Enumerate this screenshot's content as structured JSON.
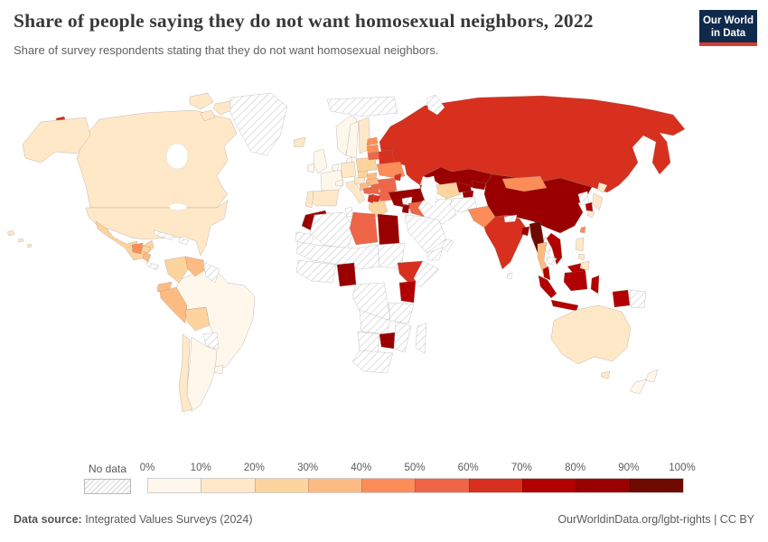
{
  "header": {
    "title": "Share of people saying they do not want homosexual neighbors, 2022",
    "subtitle": "Share of survey respondents stating that they do not want homosexual neighbors.",
    "logo": {
      "line1": "Our World",
      "line2": "in Data",
      "bg_color": "#102a4c",
      "bar_color": "#dc3a2e"
    }
  },
  "legend": {
    "no_data_label": "No data",
    "ticks": [
      "0%",
      "10%",
      "20%",
      "30%",
      "40%",
      "50%",
      "60%",
      "70%",
      "80%",
      "90%",
      "100%"
    ],
    "bands": [
      {
        "range": "0-10%",
        "color": "#fff7ec"
      },
      {
        "range": "10-20%",
        "color": "#fee8c8"
      },
      {
        "range": "20-30%",
        "color": "#fdd49e"
      },
      {
        "range": "30-40%",
        "color": "#fdbb84"
      },
      {
        "range": "40-50%",
        "color": "#fc8d59"
      },
      {
        "range": "50-60%",
        "color": "#ef6548"
      },
      {
        "range": "60-70%",
        "color": "#d7301f"
      },
      {
        "range": "70-80%",
        "color": "#b30000"
      },
      {
        "range": "80-90%",
        "color": "#9a0000"
      },
      {
        "range": "90-100%",
        "color": "#6f0a00"
      }
    ]
  },
  "footer": {
    "source_label": "Data source:",
    "source_text": " Integrated Values Surveys (2024)",
    "right_text": "OurWorldinData.org/lgbt-rights | CC BY"
  },
  "chart_data": {
    "type": "heatmap",
    "subtype": "world_choropleth",
    "title": "Share of people saying they do not want homosexual neighbors, 2022",
    "unit": "%",
    "legend_position": "bottom",
    "no_data_label": "No data",
    "regions": {
      "united-states": {
        "label": "United States",
        "value": "10-20%"
      },
      "canada": {
        "label": "Canada",
        "value": "10-20%"
      },
      "greenland": {
        "label": "Greenland",
        "value": "No data"
      },
      "mexico": {
        "label": "Mexico",
        "value": "20-30%"
      },
      "guatemala": {
        "label": "Guatemala",
        "value": "40-50%"
      },
      "honduras": {
        "label": "Honduras",
        "value": "20-30%"
      },
      "nicaragua": {
        "label": "Nicaragua",
        "value": "30-40%"
      },
      "costa-rica-panama": {
        "label": "Costa Rica & Panama",
        "value": "No data"
      },
      "cuba": {
        "label": "Cuba",
        "value": "No data"
      },
      "hispaniola": {
        "label": "Hispaniola",
        "value": "No data"
      },
      "colombia": {
        "label": "Colombia",
        "value": "20-30%"
      },
      "venezuela": {
        "label": "Venezuela",
        "value": "30-40%"
      },
      "guyanas": {
        "label": "Guyanas",
        "value": "No data"
      },
      "ecuador": {
        "label": "Ecuador",
        "value": "30-40%"
      },
      "peru": {
        "label": "Peru",
        "value": "30-40%"
      },
      "bolivia": {
        "label": "Bolivia",
        "value": "20-30%"
      },
      "brazil": {
        "label": "Brazil",
        "value": "0-10%"
      },
      "paraguay": {
        "label": "Paraguay",
        "value": "No data"
      },
      "uruguay": {
        "label": "Uruguay",
        "value": "0-10%"
      },
      "argentina": {
        "label": "Argentina",
        "value": "0-10%"
      },
      "chile": {
        "label": "Chile",
        "value": "10-20%"
      },
      "iceland": {
        "label": "Iceland",
        "value": "10-20%"
      },
      "united-kingdom": {
        "label": "United Kingdom",
        "value": "0-10%"
      },
      "ireland": {
        "label": "Ireland",
        "value": "0-10%"
      },
      "norway": {
        "label": "Norway",
        "value": "0-10%"
      },
      "sweden": {
        "label": "Sweden",
        "value": "0-10%"
      },
      "finland": {
        "label": "Finland",
        "value": "10-20%"
      },
      "denmark": {
        "label": "Denmark",
        "value": "0-10%"
      },
      "benelux": {
        "label": "Netherlands & Belgium",
        "value": "0-10%"
      },
      "germany": {
        "label": "Germany",
        "value": "10-20%"
      },
      "france": {
        "label": "France",
        "value": "0-10%"
      },
      "switzerland": {
        "label": "Switzerland",
        "value": "0-10%"
      },
      "spain": {
        "label": "Spain",
        "value": "10-20%"
      },
      "portugal": {
        "label": "Portugal",
        "value": "10-20%"
      },
      "italy": {
        "label": "Italy",
        "value": "10-20%"
      },
      "austria": {
        "label": "Austria",
        "value": "10-20%"
      },
      "czechia": {
        "label": "Czechia",
        "value": "20-30%"
      },
      "poland": {
        "label": "Poland",
        "value": "20-30%"
      },
      "estonia": {
        "label": "Estonia",
        "value": "40-50%"
      },
      "latvia": {
        "label": "Latvia",
        "value": "40-50%"
      },
      "lithuania": {
        "label": "Lithuania",
        "value": "50-60%"
      },
      "belarus": {
        "label": "Belarus",
        "value": "60-70%"
      },
      "ukraine": {
        "label": "Ukraine",
        "value": "40-50%"
      },
      "moldova": {
        "label": "Moldova",
        "value": "60-70%"
      },
      "slovakia": {
        "label": "Slovakia",
        "value": "30-40%"
      },
      "hungary": {
        "label": "Hungary",
        "value": "30-40%"
      },
      "romania": {
        "label": "Romania",
        "value": "50-60%"
      },
      "croatia": {
        "label": "Croatia",
        "value": "30-40%"
      },
      "bosnia": {
        "label": "Bosnia & Herzegovina",
        "value": "50-60%"
      },
      "serbia": {
        "label": "Serbia",
        "value": "50-60%"
      },
      "bulgaria": {
        "label": "Bulgaria",
        "value": "50-60%"
      },
      "albania": {
        "label": "Albania",
        "value": "60-70%"
      },
      "north-macedonia": {
        "label": "North Macedonia",
        "value": "60-70%"
      },
      "greece": {
        "label": "Greece",
        "value": "20-30%"
      },
      "svalbard": {
        "label": "Svalbard",
        "value": "No data"
      },
      "arctic-islands": {
        "label": "Arctic islands",
        "value": "No data"
      },
      "russia": {
        "label": "Russia",
        "value": "60-70%"
      },
      "turkey": {
        "label": "Turkey",
        "value": "80-90%"
      },
      "georgia": {
        "label": "Georgia",
        "value": "80-90%"
      },
      "armenia-azerbaijan": {
        "label": "Armenia & Azerbaijan",
        "value": "80-90%"
      },
      "kazakhstan": {
        "label": "Kazakhstan",
        "value": "80-90%"
      },
      "turkmenistan": {
        "label": "Turkmenistan",
        "value": "20-30%"
      },
      "uzbekistan": {
        "label": "Uzbekistan",
        "value": "80-90%"
      },
      "kyrgyzstan": {
        "label": "Kyrgyzstan",
        "value": "80-90%"
      },
      "tajikistan": {
        "label": "Tajikistan",
        "value": "80-90%"
      },
      "afghanistan": {
        "label": "Afghanistan",
        "value": "No data"
      },
      "iran": {
        "label": "Iran",
        "value": "No data"
      },
      "iraq": {
        "label": "Iraq",
        "value": "50-60%"
      },
      "syria": {
        "label": "Syria",
        "value": "No data"
      },
      "jordan": {
        "label": "Jordan",
        "value": "80-90%"
      },
      "saudi-arabia": {
        "label": "Saudi Arabia",
        "value": "No data"
      },
      "yemen": {
        "label": "Yemen",
        "value": "No data"
      },
      "oman": {
        "label": "Oman",
        "value": "No data"
      },
      "morocco": {
        "label": "Morocco",
        "value": "80-90%"
      },
      "western-sahara": {
        "label": "Western Sahara",
        "value": "No data"
      },
      "algeria": {
        "label": "Algeria",
        "value": "No data"
      },
      "tunisia": {
        "label": "Tunisia",
        "value": "No data"
      },
      "libya": {
        "label": "Libya",
        "value": "50-60%"
      },
      "egypt": {
        "label": "Egypt",
        "value": "80-90%"
      },
      "sudan": {
        "label": "Sudan",
        "value": "No data"
      },
      "sahel": {
        "label": "Sahel countries",
        "value": "No data"
      },
      "west-africa": {
        "label": "West Africa",
        "value": "No data"
      },
      "nigeria": {
        "label": "Nigeria",
        "value": "80-90%"
      },
      "central-africa": {
        "label": "Central Africa",
        "value": "No data"
      },
      "ethiopia": {
        "label": "Ethiopia",
        "value": "60-70%"
      },
      "somalia": {
        "label": "Somalia",
        "value": "No data"
      },
      "kenya": {
        "label": "Kenya",
        "value": "70-80%"
      },
      "tanzania": {
        "label": "Tanzania",
        "value": "No data"
      },
      "zambia-angola": {
        "label": "Angola & Zambia",
        "value": "No data"
      },
      "zimbabwe": {
        "label": "Zimbabwe",
        "value": "80-90%"
      },
      "mozambique": {
        "label": "Mozambique",
        "value": "No data"
      },
      "madagascar": {
        "label": "Madagascar",
        "value": "No data"
      },
      "namibia-botswana": {
        "label": "Namibia & Botswana",
        "value": "No data"
      },
      "south-africa": {
        "label": "South Africa",
        "value": "No data"
      },
      "pakistan": {
        "label": "Pakistan",
        "value": "40-50%"
      },
      "india": {
        "label": "India",
        "value": "60-70%"
      },
      "nepal": {
        "label": "Nepal",
        "value": "No data"
      },
      "sri-lanka": {
        "label": "Sri Lanka",
        "value": "No data"
      },
      "bangladesh": {
        "label": "Bangladesh",
        "value": "80-90%"
      },
      "china": {
        "label": "China",
        "value": "80-90%"
      },
      "mongolia": {
        "label": "Mongolia",
        "value": "40-50%"
      },
      "myanmar": {
        "label": "Myanmar",
        "value": "90-100%"
      },
      "thailand": {
        "label": "Thailand",
        "value": "30-40%"
      },
      "laos": {
        "label": "Laos",
        "value": "No data"
      },
      "cambodia": {
        "label": "Cambodia",
        "value": "No data"
      },
      "vietnam": {
        "label": "Vietnam",
        "value": "70-80%"
      },
      "malaysia": {
        "label": "Malaysia",
        "value": "70-80%"
      },
      "indonesia": {
        "label": "Indonesia",
        "value": "70-80%"
      },
      "papua-new-guinea": {
        "label": "Papua New Guinea",
        "value": "No data"
      },
      "philippines": {
        "label": "Philippines",
        "value": "10-20%"
      },
      "taiwan": {
        "label": "Taiwan",
        "value": "40-50%"
      },
      "north-korea": {
        "label": "North Korea",
        "value": "No data"
      },
      "south-korea": {
        "label": "South Korea",
        "value": "70-80%"
      },
      "japan": {
        "label": "Japan",
        "value": "10-20%"
      },
      "australia": {
        "label": "Australia",
        "value": "10-20%"
      },
      "new-zealand": {
        "label": "New Zealand",
        "value": "0-10%"
      }
    }
  }
}
